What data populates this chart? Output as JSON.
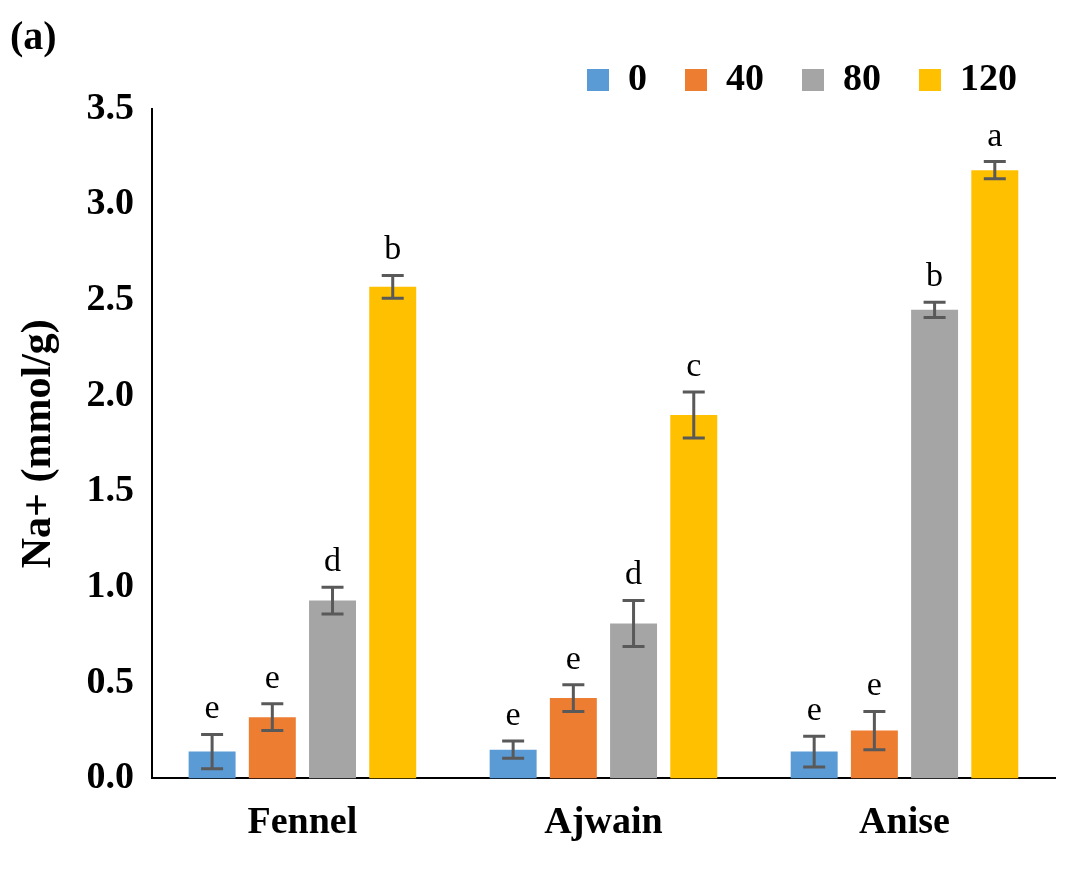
{
  "chart_data": {
    "type": "bar",
    "title": "(a)",
    "ylabel": "Na+ (mmol/g)",
    "categories": [
      "Fennel",
      "Ajwain",
      "Anise"
    ],
    "series": [
      {
        "name": "0",
        "color": "#5b9bd5",
        "values": [
          0.14,
          0.15,
          0.14
        ],
        "errors": [
          0.09,
          0.045,
          0.08
        ],
        "value_labels": [
          "e",
          "e",
          "e"
        ]
      },
      {
        "name": "40",
        "color": "#ed7d31",
        "values": [
          0.32,
          0.42,
          0.25
        ],
        "errors": [
          0.07,
          0.07,
          0.1
        ],
        "value_labels": [
          "e",
          "e",
          "e"
        ]
      },
      {
        "name": "80",
        "color": "#a5a5a5",
        "values": [
          0.93,
          0.81,
          2.45
        ],
        "errors": [
          0.07,
          0.12,
          0.04
        ],
        "value_labels": [
          "d",
          "d",
          "b"
        ]
      },
      {
        "name": "120",
        "color": "#ffc000",
        "values": [
          2.57,
          1.9,
          3.18
        ],
        "errors": [
          0.06,
          0.12,
          0.045
        ],
        "value_labels": [
          "b",
          "c",
          "a"
        ]
      }
    ],
    "ylim": [
      0,
      3.5
    ],
    "yticks": [
      {
        "value": 0,
        "label": "0.0"
      },
      0.5,
      {
        "value": 1,
        "label": "1.0"
      },
      1.5,
      {
        "value": 2,
        "label": "2.0"
      },
      2.5,
      {
        "value": 3,
        "label": "3.0"
      },
      3.5
    ],
    "grid": false,
    "legend": "top right"
  }
}
